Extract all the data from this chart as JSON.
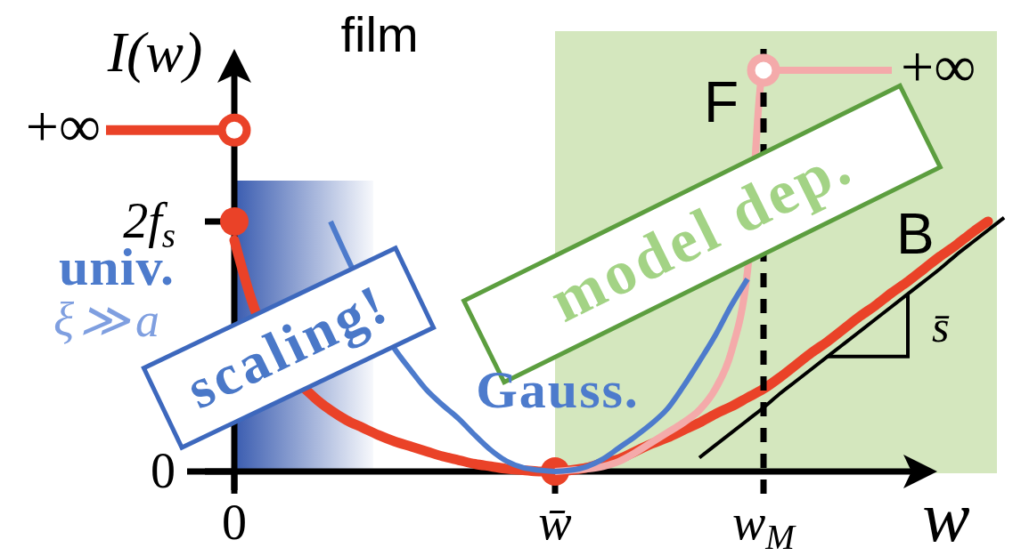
{
  "chart_data": {
    "type": "line",
    "title": "film",
    "xlabel": "w",
    "ylabel": "I(w)",
    "categories": [
      null,
      null,
      null,
      null,
      null,
      null,
      null,
      null,
      "0",
      null,
      null,
      null,
      null,
      null,
      null,
      null,
      null,
      null,
      null,
      null,
      null,
      null,
      null,
      null,
      null,
      null,
      null,
      null,
      "w̄",
      null,
      null,
      null,
      null,
      null,
      null,
      null,
      null,
      null,
      null,
      null,
      null,
      "w$_{M}$",
      null,
      null,
      null,
      null,
      null,
      null,
      null,
      null,
      null,
      null,
      null,
      null,
      null,
      null,
      null
    ],
    "ylim": [
      -0.15,
      3.38
    ],
    "yticks": [
      0,
      {
        "value": 2,
        "label": "2f$_{s}$"
      }
    ],
    "series": [
      {
        "name": "B",
        "color": "#ea4228",
        "values": [
          null,
          null,
          null,
          null,
          null,
          null,
          null,
          null,
          1.85,
          1.4,
          null,
          null,
          null,
          0.59,
          0.49,
          0.41,
          0.35,
          0.29,
          0.24,
          0.2,
          0.16,
          0.12,
          0.09,
          0.06,
          0.04,
          0.02,
          0.01,
          0,
          0,
          0.01,
          0.03,
          0.07,
          0.1,
          0.16,
          0.22,
          0.27,
          0.33,
          0.39,
          0.46,
          0.52,
          0.59,
          0.66,
          0.75,
          0.85,
          0.95,
          1.04,
          1.14,
          1.24,
          1.33,
          1.43,
          1.52,
          1.62,
          1.72,
          1.81,
          1.91,
          2.0,
          null
        ]
      },
      {
        "color": "#ea4228",
        "values": [
          2.73,
          2.73,
          2.73,
          2.73,
          2.73,
          2.73,
          2.73,
          2.73,
          2.73,
          null,
          null,
          null,
          null,
          null,
          null,
          null,
          null,
          null,
          null,
          null,
          null,
          null,
          null,
          null,
          null,
          null,
          null,
          null,
          null,
          null,
          null,
          null,
          null,
          null,
          null,
          null,
          null,
          null,
          null,
          null,
          null,
          null,
          null,
          null,
          null,
          null,
          null,
          null,
          null,
          null,
          null,
          null,
          null,
          null,
          null,
          null,
          null
        ]
      },
      {
        "color": "#ea4228",
        "marker": "circle",
        "values": [
          null,
          null,
          null,
          null,
          null,
          null,
          null,
          null,
          2.73,
          null,
          null,
          null,
          null,
          null,
          null,
          null,
          null,
          null,
          null,
          null,
          null,
          null,
          null,
          null,
          null,
          null,
          null,
          null,
          null,
          null,
          null,
          null,
          null,
          null,
          null,
          null,
          null,
          null,
          null,
          null,
          null,
          null,
          null,
          null,
          null,
          null,
          null,
          null,
          null,
          null,
          null,
          null,
          null,
          null,
          null,
          null,
          null
        ]
      },
      {
        "type": "scatter",
        "color": "#ea4228",
        "marker": "circle",
        "values": [
          null,
          null,
          null,
          null,
          null,
          null,
          null,
          null,
          2,
          null,
          null,
          null,
          null,
          null,
          null,
          null,
          null,
          null,
          null,
          null,
          null,
          null,
          null,
          null,
          null,
          null,
          null,
          null,
          0,
          null,
          null,
          null,
          null,
          null,
          null,
          null,
          null,
          null,
          null,
          null,
          null,
          null,
          null,
          null,
          null,
          null,
          null,
          null,
          null,
          null,
          null,
          null,
          null,
          null,
          null,
          null,
          null
        ]
      },
      {
        "name": "F",
        "color": "#f4aaaa",
        "values": [
          null,
          null,
          null,
          null,
          null,
          null,
          null,
          null,
          null,
          null,
          null,
          null,
          null,
          null,
          null,
          null,
          null,
          null,
          null,
          null,
          null,
          null,
          null,
          null,
          null,
          null,
          null,
          null,
          0,
          0.01,
          0.02,
          0.04,
          0.08,
          0.15,
          0.23,
          0.31,
          0.39,
          0.49,
          0.66,
          0.96,
          1.6,
          3.21,
          3.21,
          3.21,
          3.21,
          3.21,
          3.21,
          3.21,
          3.21,
          3.21,
          null,
          null,
          null,
          null,
          null,
          null,
          null
        ]
      },
      {
        "color": "#f4aaaa",
        "marker": "circle",
        "values": [
          null,
          null,
          null,
          null,
          null,
          null,
          null,
          null,
          null,
          null,
          null,
          null,
          null,
          null,
          null,
          null,
          null,
          null,
          null,
          null,
          null,
          null,
          null,
          null,
          null,
          null,
          null,
          null,
          null,
          null,
          null,
          null,
          null,
          null,
          null,
          null,
          null,
          null,
          null,
          null,
          null,
          3.21,
          null,
          null,
          null,
          null,
          null,
          null,
          null,
          null,
          null,
          null,
          null,
          null,
          null,
          null,
          null
        ]
      },
      {
        "name": "Gauss.",
        "color": "#4d7bcc",
        "values": [
          null,
          null,
          null,
          null,
          null,
          null,
          null,
          null,
          null,
          null,
          null,
          null,
          null,
          null,
          2.0,
          1.72,
          null,
          null,
          0.98,
          0.81,
          0.65,
          0.53,
          0.42,
          0.29,
          0.17,
          0.08,
          0.03,
          0.01,
          0,
          0.01,
          0.04,
          0.1,
          0.19,
          0.28,
          0.38,
          0.5,
          0.68,
          0.88,
          1.09,
          1.33,
          1.54,
          null,
          null,
          null,
          null,
          null,
          null,
          null,
          null,
          null,
          null,
          null,
          null,
          null,
          null,
          null,
          null
        ]
      },
      {
        "color": "#000000",
        "values": [
          null,
          null,
          null,
          null,
          null,
          null,
          null,
          null,
          null,
          null,
          null,
          null,
          null,
          null,
          null,
          null,
          null,
          null,
          null,
          null,
          null,
          null,
          null,
          null,
          null,
          null,
          null,
          null,
          null,
          null,
          null,
          null,
          null,
          null,
          null,
          null,
          null,
          0.11,
          0.21,
          0.31,
          0.41,
          0.51,
          0.62,
          0.72,
          0.82,
          0.92,
          1.02,
          1.12,
          1.22,
          1.32,
          1.42,
          1.52,
          1.62,
          1.73,
          1.83,
          1.93,
          2.03
        ]
      }
    ],
    "ref_lines": [
      {
        "axis": "x",
        "value": "w$_{M}$",
        "color": "#000000",
        "line_style": "dashed"
      }
    ],
    "annotations": [
      "univ.",
      "ξ≫a",
      {
        "text": "s̄",
        "y": 1.62
      },
      "+∞",
      "+∞",
      "scaling!",
      "model dep."
    ]
  }
}
